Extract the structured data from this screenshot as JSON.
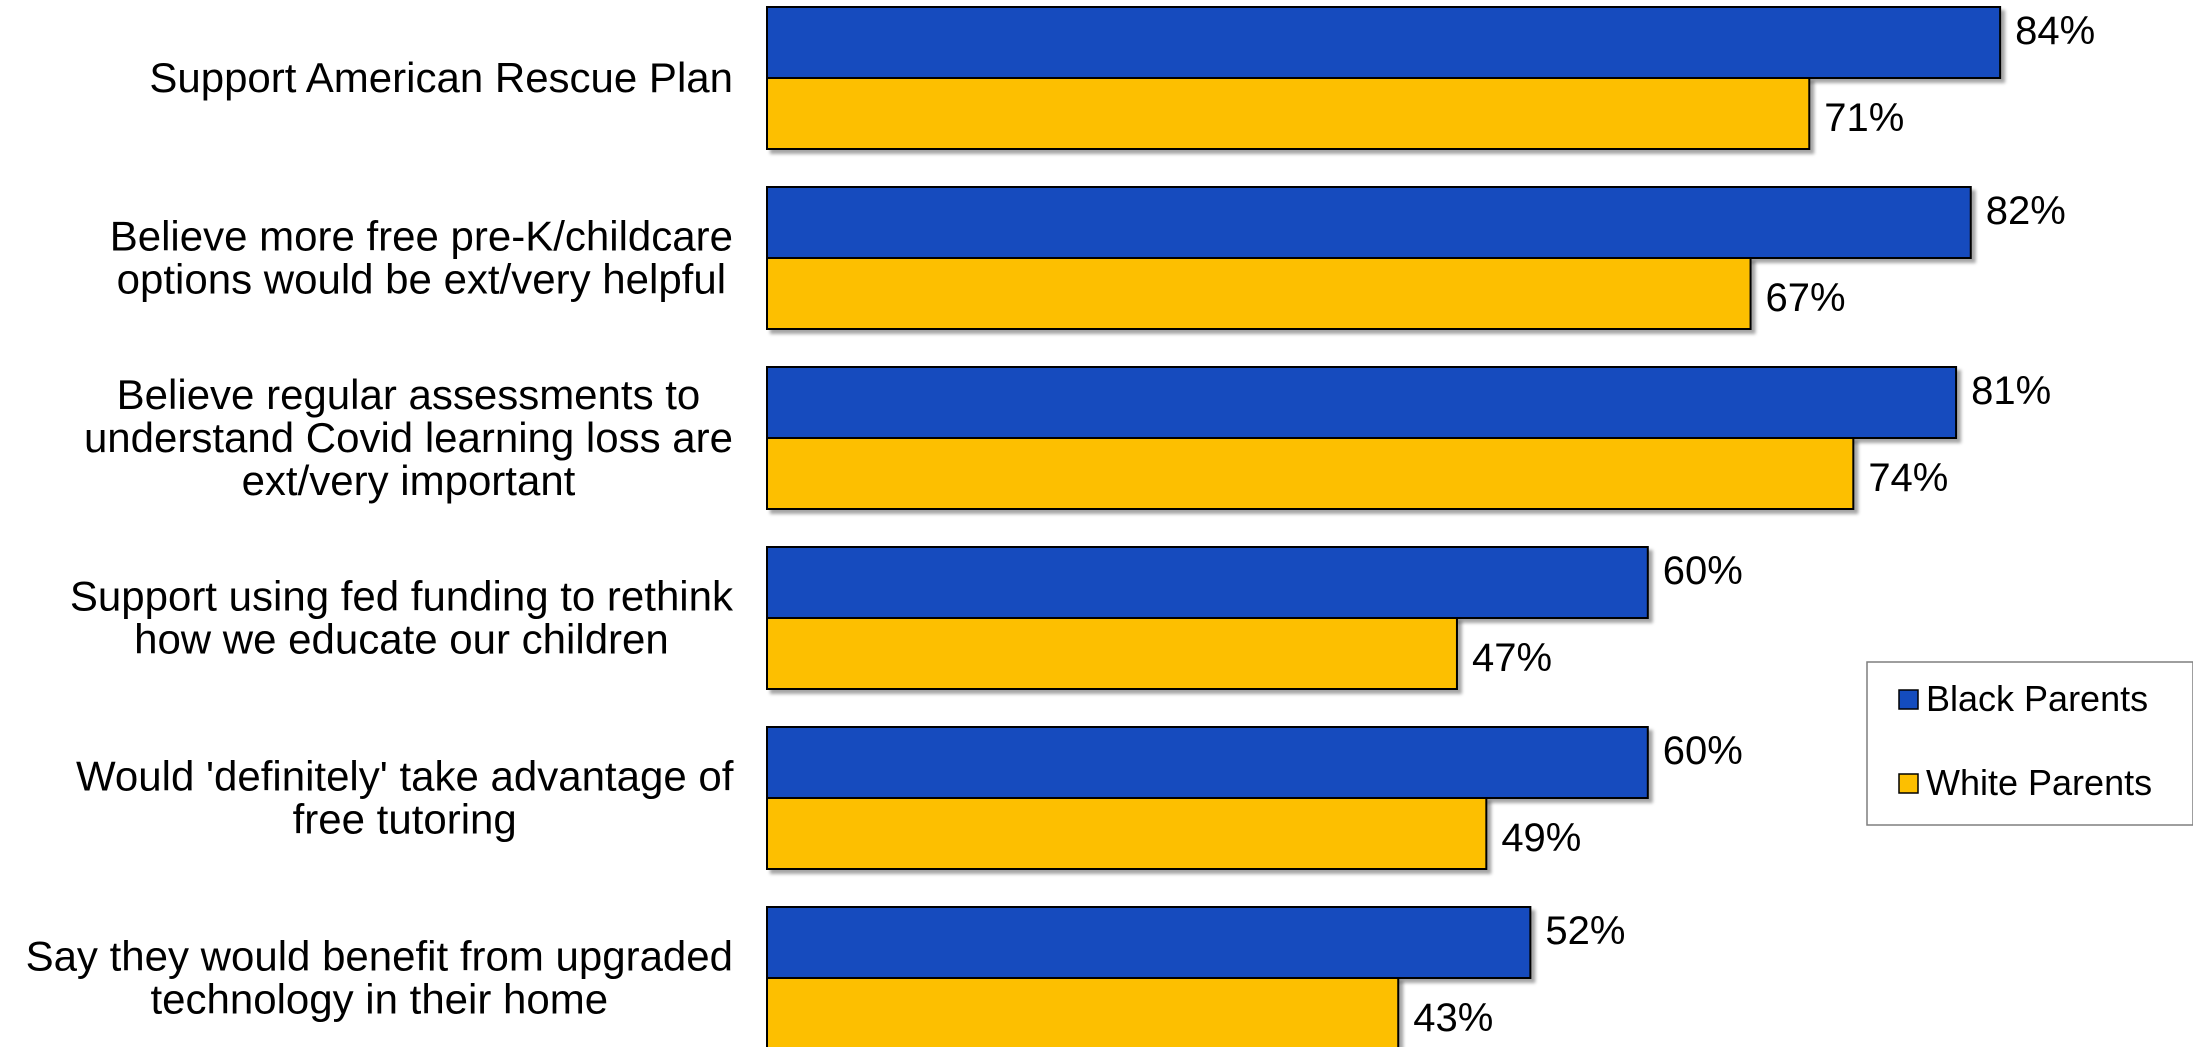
{
  "chart_data": {
    "type": "bar",
    "orientation": "horizontal",
    "categories": [
      [
        "Support American Rescue Plan"
      ],
      [
        "Believe more free pre-K/childcare",
        "options would be ext/very helpful"
      ],
      [
        "Believe regular assessments to",
        "understand Covid learning loss are",
        "ext/very important"
      ],
      [
        "Support using fed funding to rethink",
        "how we educate our children"
      ],
      [
        "Would 'definitely' take advantage of",
        "free tutoring"
      ],
      [
        "Say they would benefit from upgraded",
        "technology in their home"
      ]
    ],
    "series": [
      {
        "name": "Black Parents",
        "color": "#144CBE",
        "values": [
          84,
          82,
          81,
          60,
          60,
          52
        ],
        "labels": [
          "84%",
          "82%",
          "81%",
          "60%",
          "60%",
          "52%"
        ]
      },
      {
        "name": "White Parents",
        "color": "#FDBF00",
        "values": [
          71,
          67,
          74,
          47,
          49,
          43
        ],
        "labels": [
          "71%",
          "67%",
          "74%",
          "47%",
          "49%",
          "43%"
        ]
      }
    ],
    "xlim": [
      0,
      100
    ],
    "grid": false,
    "legend_position": "right"
  }
}
